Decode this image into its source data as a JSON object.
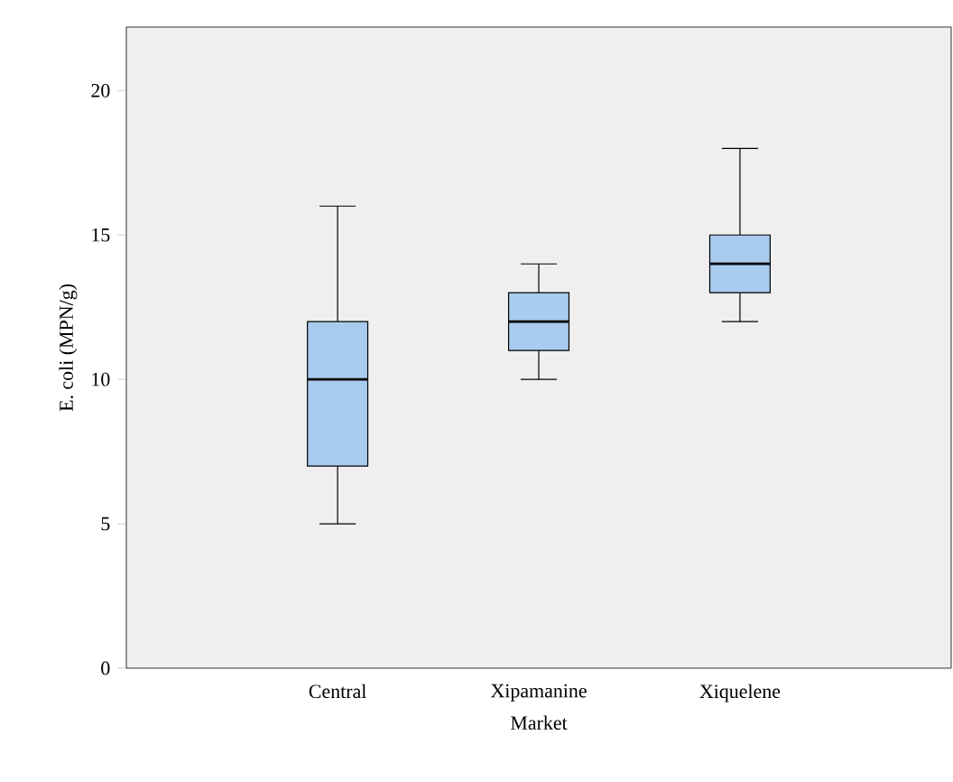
{
  "chart_data": {
    "type": "box",
    "xlabel": "Market",
    "ylabel": "E. coli (MPN/g)",
    "categories": [
      "Central",
      "Xipamanine",
      "Xiquelene"
    ],
    "color": "#a9cbee",
    "boxes": [
      {
        "low": 5,
        "q1": 7,
        "median": 10,
        "q3": 12,
        "high": 16
      },
      {
        "low": 10,
        "q1": 11,
        "median": 12,
        "q3": 13,
        "high": 14
      },
      {
        "low": 12,
        "q1": 13,
        "median": 14,
        "q3": 15,
        "high": 18
      }
    ],
    "ylim": [
      0,
      22.2
    ],
    "yticks": [
      0,
      5,
      10,
      15,
      20
    ]
  }
}
